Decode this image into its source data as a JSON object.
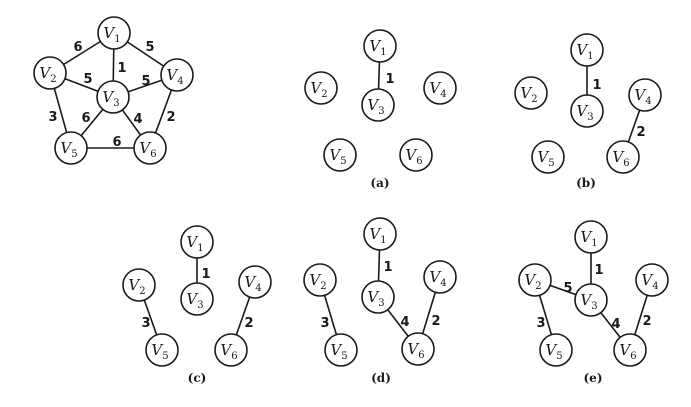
{
  "node_labels": {
    "V1": {
      "letter": "V",
      "sub": "1"
    },
    "V2": {
      "letter": "V",
      "sub": "2"
    },
    "V3": {
      "letter": "V",
      "sub": "3"
    },
    "V4": {
      "letter": "V",
      "sub": "4"
    },
    "V5": {
      "letter": "V",
      "sub": "5"
    },
    "V6": {
      "letter": "V",
      "sub": "6"
    }
  },
  "diagrams": [
    {
      "id": "graph",
      "caption": "",
      "edges": [
        {
          "from": "V1",
          "to": "V2",
          "weight": "6"
        },
        {
          "from": "V1",
          "to": "V4",
          "weight": "5"
        },
        {
          "from": "V1",
          "to": "V3",
          "weight": "1"
        },
        {
          "from": "V2",
          "to": "V3",
          "weight": "5"
        },
        {
          "from": "V3",
          "to": "V4",
          "weight": "5"
        },
        {
          "from": "V2",
          "to": "V5",
          "weight": "3"
        },
        {
          "from": "V4",
          "to": "V6",
          "weight": "2"
        },
        {
          "from": "V3",
          "to": "V5",
          "weight": "6"
        },
        {
          "from": "V3",
          "to": "V6",
          "weight": "4"
        },
        {
          "from": "V5",
          "to": "V6",
          "weight": "6"
        }
      ]
    },
    {
      "id": "a",
      "caption": "(a)",
      "edges": [
        {
          "from": "V1",
          "to": "V3",
          "weight": "1"
        }
      ]
    },
    {
      "id": "b",
      "caption": "(b)",
      "edges": [
        {
          "from": "V1",
          "to": "V3",
          "weight": "1"
        },
        {
          "from": "V4",
          "to": "V6",
          "weight": "2"
        }
      ]
    },
    {
      "id": "c",
      "caption": "(c)",
      "edges": [
        {
          "from": "V1",
          "to": "V3",
          "weight": "1"
        },
        {
          "from": "V4",
          "to": "V6",
          "weight": "2"
        },
        {
          "from": "V2",
          "to": "V5",
          "weight": "3"
        }
      ]
    },
    {
      "id": "d",
      "caption": "(d)",
      "edges": [
        {
          "from": "V1",
          "to": "V3",
          "weight": "1"
        },
        {
          "from": "V4",
          "to": "V6",
          "weight": "2"
        },
        {
          "from": "V2",
          "to": "V5",
          "weight": "3"
        },
        {
          "from": "V3",
          "to": "V6",
          "weight": "4"
        }
      ]
    },
    {
      "id": "e",
      "caption": "(e)",
      "edges": [
        {
          "from": "V1",
          "to": "V3",
          "weight": "1"
        },
        {
          "from": "V4",
          "to": "V6",
          "weight": "2"
        },
        {
          "from": "V2",
          "to": "V5",
          "weight": "3"
        },
        {
          "from": "V3",
          "to": "V6",
          "weight": "4"
        },
        {
          "from": "V2",
          "to": "V3",
          "weight": "5"
        }
      ]
    }
  ]
}
